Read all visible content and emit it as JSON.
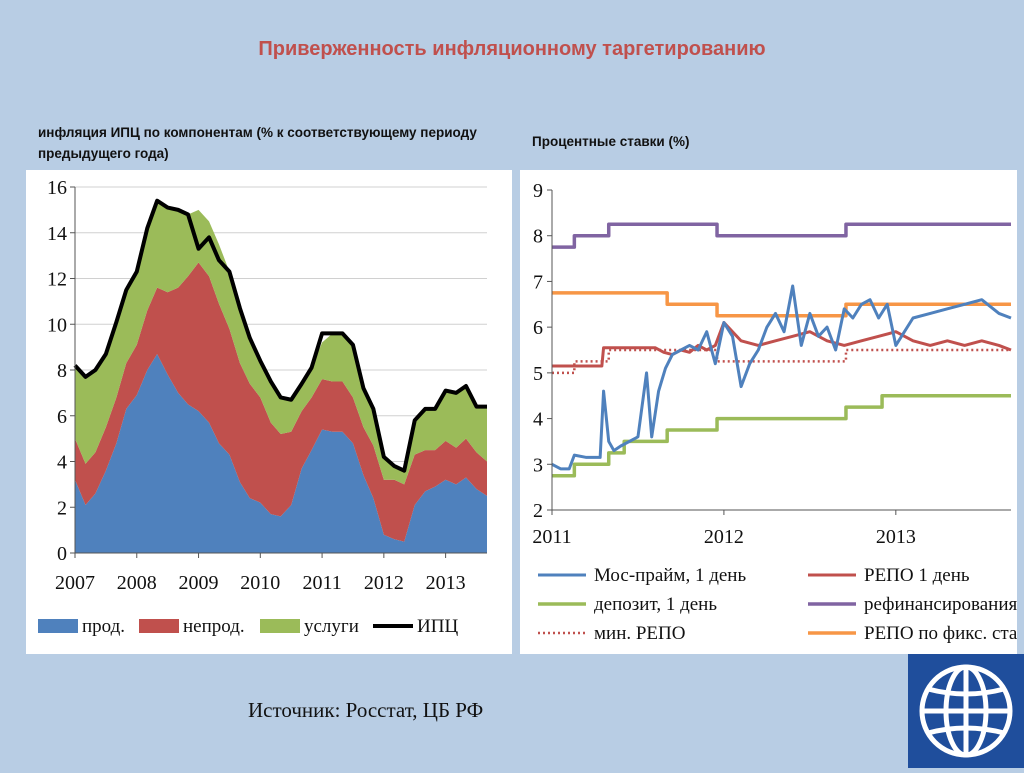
{
  "slide": {
    "title": "Приверженность инфляционному таргетированию",
    "source": "Источник: Росстат, ЦБ РФ",
    "logo_icon": "world-bank-globe-icon"
  },
  "colors": {
    "title": "#c0504d",
    "background": "#b8cde4",
    "food": "#4f81bd",
    "nonfood": "#c0504d",
    "services": "#9bbb59",
    "cpi": "#000000",
    "mosprime": "#4f81bd",
    "repo": "#c0504d",
    "deposit": "#9bbb59",
    "refinancing": "#8064a2",
    "fixed_repo": "#f79646",
    "min_repo": "#c0504d"
  },
  "chart_data": [
    {
      "type": "area",
      "title": "инфляция ИПЦ по компонентам (% к соответствующему периоду предыдущего года)",
      "x_ticks": [
        "2007",
        "2008",
        "2009",
        "2010",
        "2011",
        "2012",
        "2013"
      ],
      "x_range": [
        2007,
        2013.67
      ],
      "ylim": [
        0,
        16
      ],
      "y_ticks": [
        0,
        2,
        4,
        6,
        8,
        10,
        12,
        14,
        16
      ],
      "grid": true,
      "legend_position": "bottom",
      "legend": [
        "прод.",
        "непрод.",
        "услуги",
        "ИПЦ"
      ],
      "x": [
        2007.0,
        2007.17,
        2007.33,
        2007.5,
        2007.67,
        2007.83,
        2008.0,
        2008.17,
        2008.33,
        2008.5,
        2008.67,
        2008.83,
        2009.0,
        2009.17,
        2009.33,
        2009.5,
        2009.67,
        2009.83,
        2010.0,
        2010.17,
        2010.33,
        2010.5,
        2010.67,
        2010.83,
        2011.0,
        2011.17,
        2011.33,
        2011.5,
        2011.67,
        2011.83,
        2012.0,
        2012.17,
        2012.33,
        2012.5,
        2012.67,
        2012.83,
        2013.0,
        2013.17,
        2013.33,
        2013.5,
        2013.67
      ],
      "series": [
        {
          "name": "прод.",
          "values": [
            3.2,
            2.1,
            2.6,
            3.6,
            4.8,
            6.3,
            6.9,
            8.0,
            8.7,
            7.8,
            7.0,
            6.5,
            6.2,
            5.7,
            4.8,
            4.3,
            3.1,
            2.4,
            2.2,
            1.7,
            1.6,
            2.1,
            3.7,
            4.5,
            5.4,
            5.3,
            5.3,
            4.8,
            3.4,
            2.4,
            0.8,
            0.6,
            0.5,
            2.1,
            2.7,
            2.9,
            3.2,
            3.0,
            3.3,
            2.8,
            2.5
          ]
        },
        {
          "name": "непрод.",
          "values": [
            1.8,
            1.8,
            1.8,
            1.9,
            2.0,
            2.0,
            2.2,
            2.6,
            2.9,
            3.6,
            4.6,
            5.6,
            6.5,
            6.4,
            6.1,
            5.5,
            5.2,
            5.0,
            4.6,
            4.0,
            3.6,
            3.2,
            2.5,
            2.3,
            2.2,
            2.2,
            2.2,
            2.0,
            2.1,
            2.3,
            2.4,
            2.6,
            2.5,
            2.2,
            1.8,
            1.6,
            1.7,
            1.6,
            1.7,
            1.6,
            1.5
          ]
        },
        {
          "name": "услуги",
          "values": [
            3.2,
            3.8,
            3.6,
            3.2,
            3.3,
            3.2,
            3.2,
            3.6,
            3.8,
            3.7,
            3.4,
            2.7,
            2.3,
            2.4,
            2.6,
            2.5,
            2.4,
            2.0,
            1.6,
            1.8,
            1.6,
            1.4,
            1.2,
            1.3,
            1.6,
            2.1,
            2.1,
            2.3,
            1.7,
            1.6,
            1.0,
            0.6,
            0.6,
            1.5,
            1.8,
            1.8,
            2.2,
            2.4,
            2.3,
            2.0,
            2.4
          ]
        },
        {
          "name": "ИПЦ",
          "values": [
            8.2,
            7.7,
            8.0,
            8.7,
            10.1,
            11.5,
            12.3,
            14.2,
            15.4,
            15.1,
            15.0,
            14.8,
            13.3,
            13.8,
            12.8,
            12.3,
            10.7,
            9.4,
            8.4,
            7.5,
            6.8,
            6.7,
            7.4,
            8.1,
            9.6,
            9.6,
            9.6,
            9.1,
            7.2,
            6.3,
            4.2,
            3.8,
            3.6,
            5.8,
            6.3,
            6.3,
            7.1,
            7.0,
            7.3,
            6.4,
            6.4
          ]
        }
      ]
    },
    {
      "type": "line",
      "title": "Процентные ставки (%)",
      "x_ticks": [
        "2011",
        "2012",
        "2013"
      ],
      "x_range": [
        2011,
        2013.67
      ],
      "ylim": [
        2,
        9
      ],
      "y_ticks": [
        2,
        3,
        4,
        5,
        6,
        7,
        8,
        9
      ],
      "grid": false,
      "legend_position": "bottom",
      "legend": [
        "Мос-прайм, 1 день",
        "РЕПО 1 день",
        "депозит, 1 день",
        "рефинансирования",
        "мин. РЕПО",
        "РЕПО по фикс. ставке"
      ],
      "series": [
        {
          "name": "Мос-прайм, 1 день",
          "x": [
            2011.0,
            2011.05,
            2011.1,
            2011.13,
            2011.2,
            2011.28,
            2011.3,
            2011.33,
            2011.36,
            2011.4,
            2011.5,
            2011.55,
            2011.58,
            2011.62,
            2011.66,
            2011.7,
            2011.75,
            2011.8,
            2011.85,
            2011.9,
            2011.95,
            2012.0,
            2012.05,
            2012.1,
            2012.15,
            2012.2,
            2012.25,
            2012.3,
            2012.35,
            2012.4,
            2012.45,
            2012.5,
            2012.55,
            2012.6,
            2012.65,
            2012.7,
            2012.75,
            2012.8,
            2012.85,
            2012.9,
            2012.95,
            2013.0,
            2013.1,
            2013.2,
            2013.3,
            2013.4,
            2013.5,
            2013.6,
            2013.67
          ],
          "values": [
            3.0,
            2.9,
            2.9,
            3.2,
            3.15,
            3.15,
            4.6,
            3.5,
            3.3,
            3.4,
            3.6,
            5.0,
            3.6,
            4.6,
            5.1,
            5.4,
            5.5,
            5.6,
            5.5,
            5.9,
            5.2,
            6.1,
            5.8,
            4.7,
            5.2,
            5.5,
            6.0,
            6.3,
            5.9,
            6.9,
            5.6,
            6.3,
            5.8,
            6.0,
            5.5,
            6.4,
            6.2,
            6.5,
            6.6,
            6.2,
            6.5,
            5.6,
            6.2,
            6.3,
            6.4,
            6.5,
            6.6,
            6.3,
            6.2
          ]
        },
        {
          "name": "РЕПО 1 день",
          "x": [
            2011.0,
            2011.29,
            2011.3,
            2011.6,
            2011.65,
            2011.7,
            2011.75,
            2011.8,
            2011.85,
            2011.9,
            2011.95,
            2012.0,
            2012.1,
            2012.2,
            2012.3,
            2012.4,
            2012.5,
            2012.6,
            2012.7,
            2012.8,
            2012.9,
            2013.0,
            2013.1,
            2013.2,
            2013.3,
            2013.4,
            2013.5,
            2013.6,
            2013.67
          ],
          "values": [
            5.15,
            5.15,
            5.55,
            5.55,
            5.45,
            5.4,
            5.5,
            5.45,
            5.6,
            5.5,
            5.6,
            6.1,
            5.7,
            5.6,
            5.7,
            5.8,
            5.9,
            5.7,
            5.6,
            5.7,
            5.8,
            5.9,
            5.7,
            5.6,
            5.7,
            5.6,
            5.7,
            5.6,
            5.5
          ]
        },
        {
          "name": "депозит, 1 день",
          "x": [
            2011.0,
            2011.13,
            2011.13,
            2011.33,
            2011.33,
            2011.42,
            2011.42,
            2011.67,
            2011.67,
            2011.96,
            2011.96,
            2012.71,
            2012.71,
            2012.92,
            2012.92,
            2013.67
          ],
          "values": [
            2.75,
            2.75,
            3.0,
            3.0,
            3.25,
            3.25,
            3.5,
            3.5,
            3.75,
            3.75,
            4.0,
            4.0,
            4.25,
            4.25,
            4.5,
            4.5
          ]
        },
        {
          "name": "рефинансирования",
          "x": [
            2011.0,
            2011.13,
            2011.13,
            2011.33,
            2011.33,
            2011.96,
            2011.96,
            2012.71,
            2012.71,
            2013.67
          ],
          "values": [
            7.75,
            7.75,
            8.0,
            8.0,
            8.25,
            8.25,
            8.0,
            8.0,
            8.25,
            8.25
          ]
        },
        {
          "name": "мин. РЕПО",
          "x": [
            2011.0,
            2011.13,
            2011.13,
            2011.33,
            2011.33,
            2011.96,
            2011.96,
            2012.71,
            2012.71,
            2013.67
          ],
          "values": [
            5.0,
            5.0,
            5.25,
            5.25,
            5.5,
            5.5,
            5.25,
            5.25,
            5.5,
            5.5
          ]
        },
        {
          "name": "РЕПО по фикс. ставке",
          "x": [
            2011.0,
            2011.67,
            2011.67,
            2011.96,
            2011.96,
            2012.71,
            2012.71,
            2013.67
          ],
          "values": [
            6.75,
            6.75,
            6.5,
            6.5,
            6.25,
            6.25,
            6.5,
            6.5
          ]
        }
      ]
    }
  ]
}
